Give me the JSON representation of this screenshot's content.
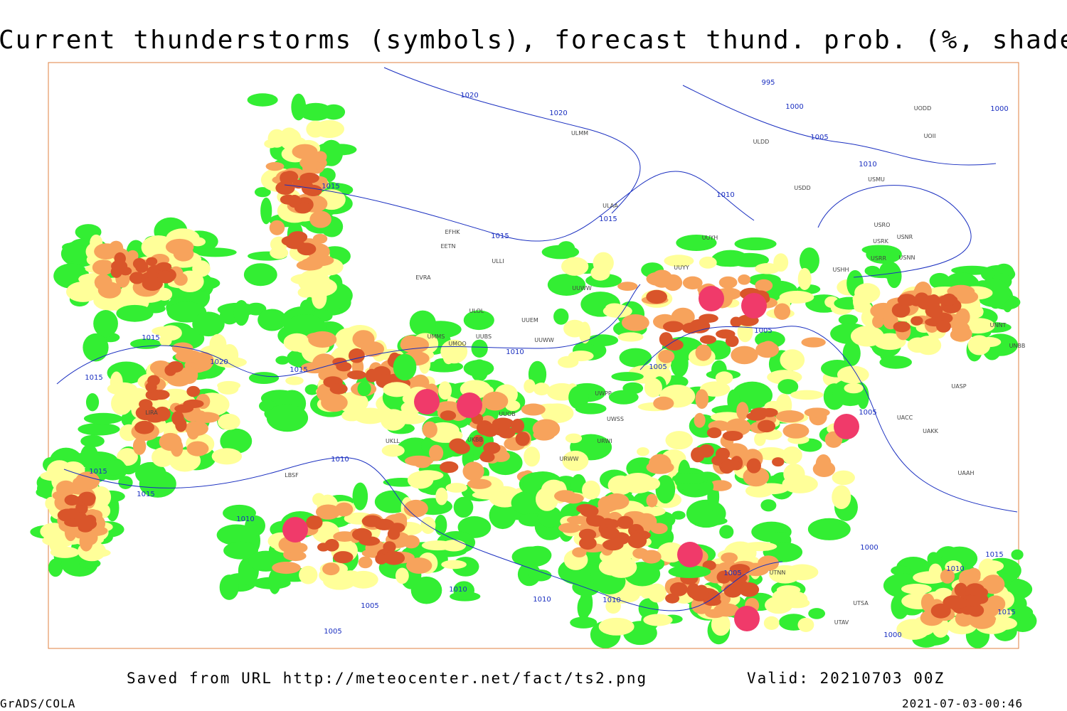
{
  "header": {
    "title": "Current thunderstorms (symbols), forecast thund. prob. (%, shaded)"
  },
  "footer": {
    "source": "Saved from URL http://meteocenter.net/fact/ts2.png",
    "valid": "Valid: 20210703 00Z",
    "software": "GrADS/COLA",
    "timestamp": "2021-07-03-00:46"
  },
  "isobar_labels": [
    "1020",
    "1020",
    "995",
    "1000",
    "1005",
    "1010",
    "1010",
    "1015",
    "1015",
    "1015",
    "1000",
    "1015",
    "1020",
    "1015",
    "1015",
    "1010",
    "1005",
    "1005",
    "1005",
    "1015",
    "1015",
    "1010",
    "1010",
    "1000",
    "1005",
    "1015",
    "1010",
    "1010",
    "1010",
    "1010",
    "1005",
    "1005",
    "1000",
    "1015"
  ],
  "stations": [
    "ULMM",
    "ULDD",
    "UODD",
    "UOII",
    "USDD",
    "USMU",
    "ULAA",
    "UUYY",
    "UUYH",
    "USRO",
    "USRK",
    "USNR",
    "USRR",
    "USNN",
    "USHH",
    "EFHK",
    "EETN",
    "ULLI",
    "UUWW",
    "EVRA",
    "ULOL",
    "UUEM",
    "UMMS",
    "UUBS",
    "UMOO",
    "UUWW",
    "UNNT",
    "UNBB",
    "UASP",
    "UACC",
    "UAKK",
    "UWPP",
    "UWSS",
    "URWI",
    "URWW",
    "UUOB",
    "UKBB",
    "UKLL",
    "LIRA",
    "LBSF",
    "UAAH",
    "UTSA",
    "UTAV",
    "UTNN"
  ]
}
